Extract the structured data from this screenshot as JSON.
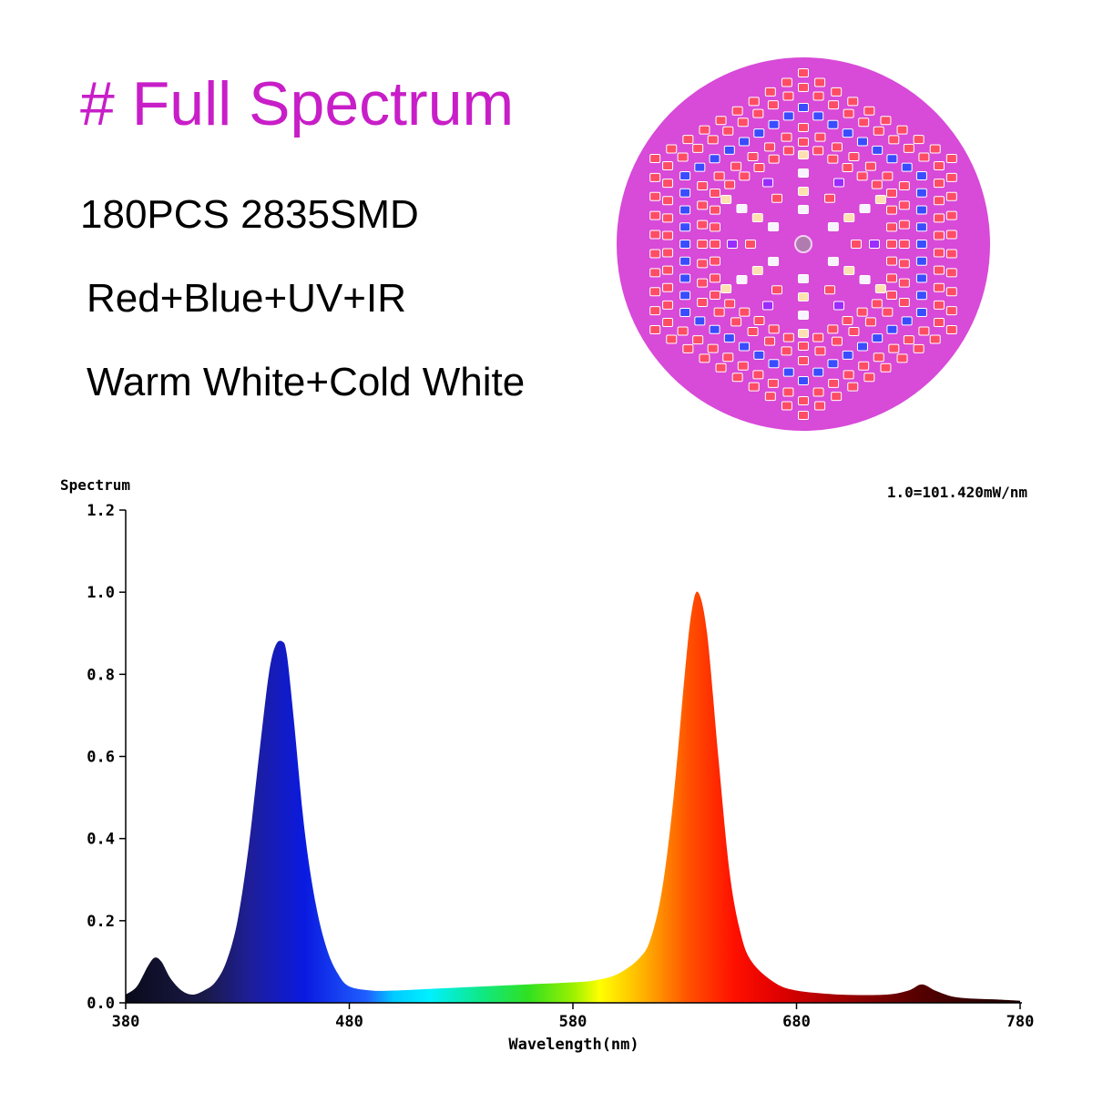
{
  "heading": {
    "title": "# Full Spectrum",
    "title_color": "#c81ec8",
    "lines": [
      "180PCS 2835SMD",
      "Red+Blue+UV+IR",
      "Warm White+Cold White"
    ]
  },
  "lamp": {
    "board_color": "#d84ad8",
    "led_colors": {
      "red": "#ff4d66",
      "blue": "#3a4cff",
      "white": "#f8f4ff",
      "warm": "#ffe0b0",
      "uv": "#9a2cff"
    }
  },
  "chart_data": {
    "type": "area",
    "title": "",
    "ylabel": "Spectrum",
    "xlabel": "Wavelength(nm)",
    "annotation": "1.0=101.420mW/nm",
    "xlim": [
      380,
      780
    ],
    "ylim": [
      0,
      1.2
    ],
    "x_ticks": [
      380,
      480,
      580,
      680,
      780
    ],
    "x_tick_labels": [
      "380",
      "480",
      "580",
      "680",
      "780"
    ],
    "y_ticks": [
      0,
      0.2,
      0.4,
      0.6,
      0.8,
      1.0,
      1.2
    ],
    "y_tick_labels": [
      "0.0",
      "0.2",
      "0.4",
      "0.6",
      "0.8",
      "1.0",
      "1.2"
    ],
    "grid": false,
    "fill": "wavelength-color gradient",
    "series": [
      {
        "x": [
          380,
          385,
          390,
          393,
          396,
          400,
          405,
          410,
          415,
          420,
          425,
          430,
          435,
          440,
          444,
          447,
          450,
          452,
          455,
          460,
          465,
          470,
          475,
          480,
          490,
          500,
          520,
          540,
          560,
          580,
          590,
          600,
          610,
          615,
          620,
          625,
          630,
          633,
          636,
          640,
          645,
          650,
          655,
          660,
          670,
          680,
          700,
          720,
          730,
          736,
          742,
          750,
          760,
          770,
          780
        ],
        "y": [
          0.02,
          0.04,
          0.09,
          0.11,
          0.1,
          0.06,
          0.03,
          0.02,
          0.03,
          0.05,
          0.1,
          0.2,
          0.38,
          0.62,
          0.8,
          0.87,
          0.88,
          0.85,
          0.7,
          0.42,
          0.24,
          0.13,
          0.07,
          0.04,
          0.03,
          0.03,
          0.035,
          0.04,
          0.045,
          0.05,
          0.055,
          0.07,
          0.11,
          0.16,
          0.28,
          0.5,
          0.8,
          0.95,
          1.0,
          0.9,
          0.6,
          0.32,
          0.17,
          0.1,
          0.05,
          0.03,
          0.02,
          0.02,
          0.03,
          0.045,
          0.03,
          0.015,
          0.01,
          0.008,
          0.005
        ]
      }
    ]
  }
}
